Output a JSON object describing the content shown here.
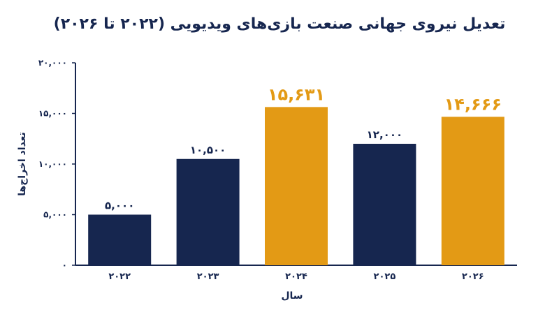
{
  "chart_data": {
    "type": "bar",
    "title": "تعدیل نیروی جهانی صنعت بازی‌های ویدیویی (۲۰۲۲ تا ۲۰۲۶)",
    "xlabel": "سال",
    "ylabel": "تعداد اخراج‌ها",
    "categories": [
      "۲۰۲۲",
      "۲۰۲۳",
      "۲۰۲۴",
      "۲۰۲۵",
      "۲۰۲۶"
    ],
    "values": [
      5000,
      10500,
      15631,
      12000,
      14666
    ],
    "data_labels": [
      "۵,۰۰۰",
      "۱۰,۵۰۰",
      "۱۵,۶۳۱",
      "۱۲,۰۰۰",
      "۱۴,۶۶۶"
    ],
    "highlight": [
      false,
      false,
      true,
      false,
      true
    ],
    "ylim": [
      0,
      20000
    ],
    "yticks": [
      0,
      5000,
      10000,
      15000,
      20000
    ],
    "ytick_labels": [
      "۰",
      "۵,۰۰۰",
      "۱۰,۰۰۰",
      "۱۵,۰۰۰",
      "۲۰,۰۰۰"
    ],
    "colors": {
      "normal": "#16264f",
      "highlight": "#e39a15",
      "axis": "#16264f"
    },
    "grid": false
  }
}
